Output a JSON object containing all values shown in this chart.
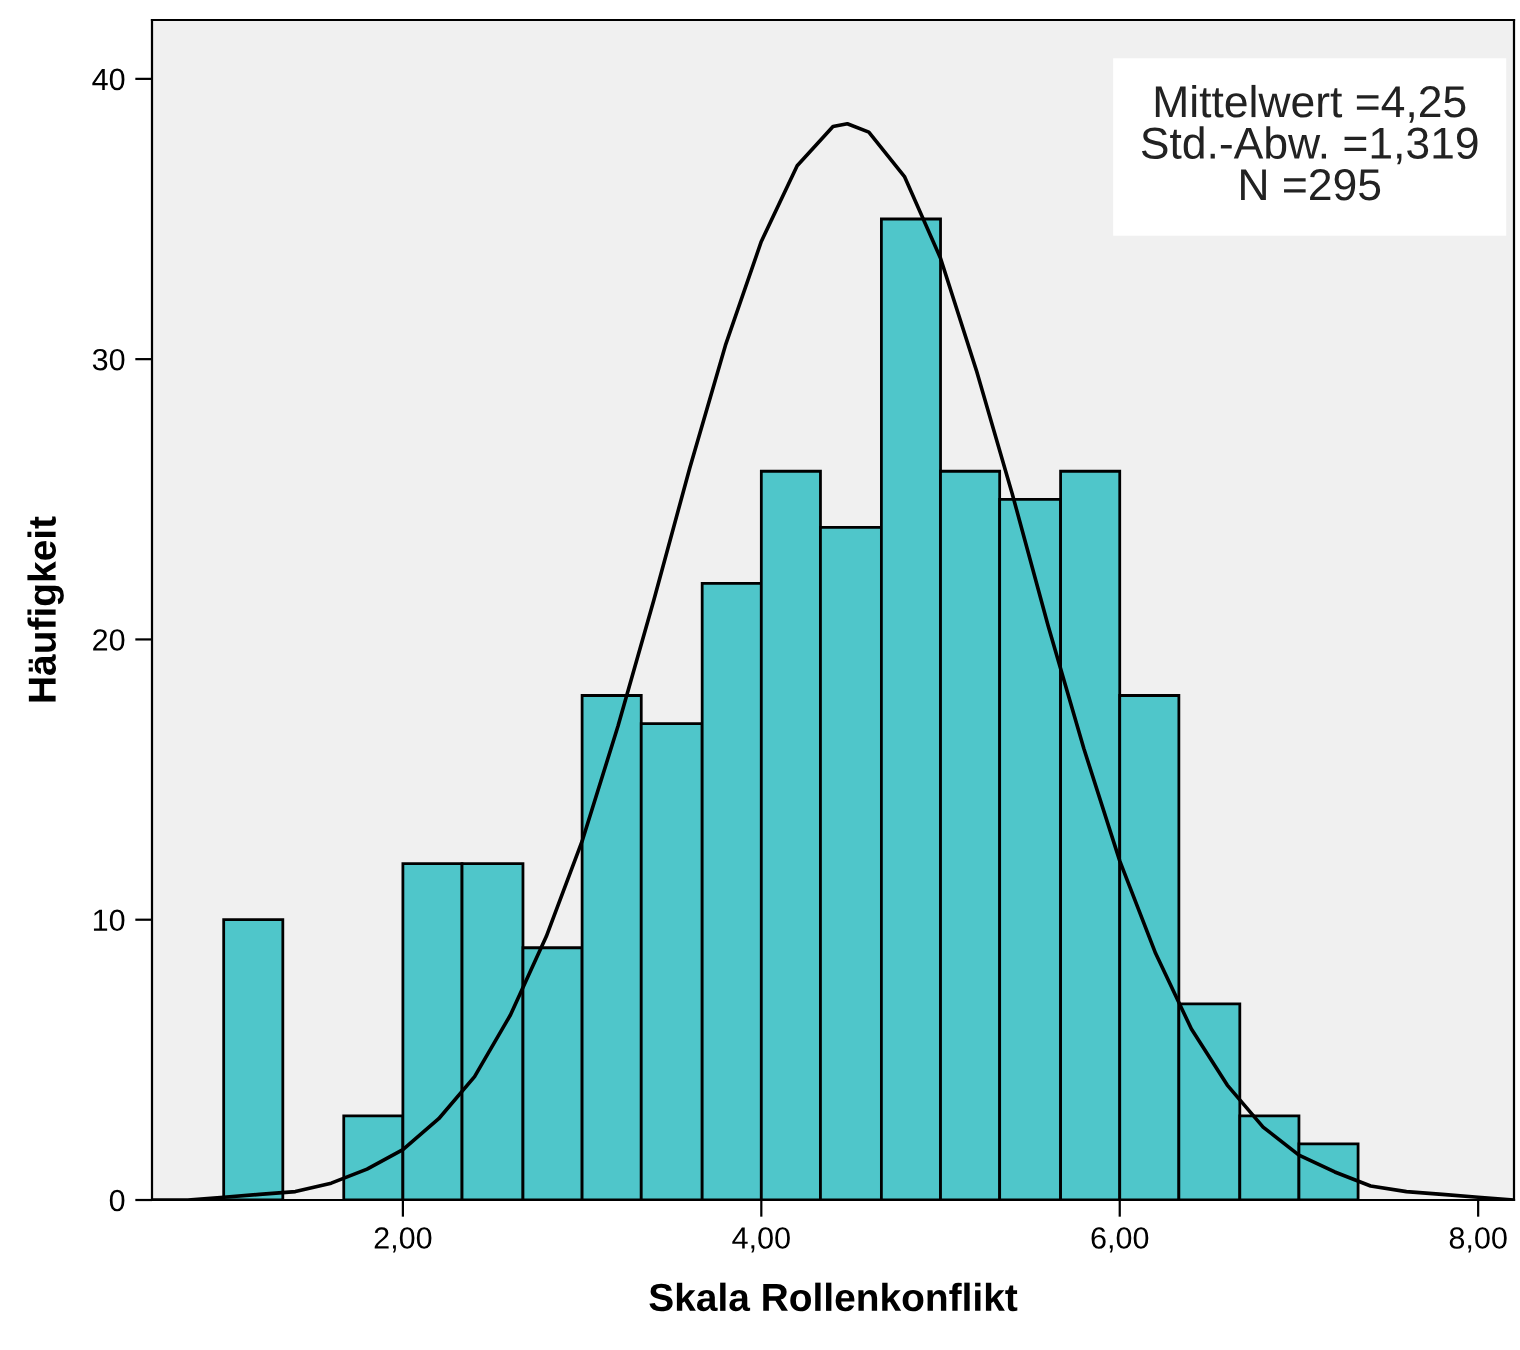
{
  "chart_data": {
    "type": "histogram",
    "xlabel": "Skala Rollenkonflikt",
    "ylabel": "Häufigkeit",
    "bins": [
      1.0,
      1.33,
      1.67,
      2.0,
      2.33,
      2.67,
      3.0,
      3.33,
      3.67,
      4.0,
      4.33,
      4.67,
      5.0,
      5.33,
      5.67,
      6.0,
      6.33,
      6.67,
      7.0,
      7.33
    ],
    "values": [
      10,
      0,
      3,
      12,
      12,
      9,
      18,
      17,
      22,
      26,
      24,
      35,
      26,
      25,
      26,
      18,
      7,
      3,
      2
    ],
    "color": "#4fc6ca",
    "series": [
      {
        "type": "line",
        "color": "#000000",
        "x": [
          0.6,
          0.8,
          1.0,
          1.2,
          1.4,
          1.6,
          1.8,
          2.0,
          2.2,
          2.4,
          2.6,
          2.8,
          3.0,
          3.2,
          3.4,
          3.6,
          3.8,
          4.0,
          4.2,
          4.4,
          4.48,
          4.6,
          4.8,
          5.0,
          5.2,
          5.4,
          5.6,
          5.8,
          6.0,
          6.2,
          6.4,
          6.6,
          6.8,
          7.0,
          7.2,
          7.4,
          7.6,
          7.8,
          8.0,
          8.2
        ],
        "values": [
          0.0,
          0.0,
          0.1,
          0.2,
          0.3,
          0.6,
          1.1,
          1.8,
          2.9,
          4.4,
          6.6,
          9.4,
          12.8,
          16.9,
          21.4,
          26.1,
          30.5,
          34.2,
          36.9,
          38.3,
          38.4,
          38.1,
          36.5,
          33.6,
          29.6,
          25.2,
          20.5,
          16.1,
          12.1,
          8.8,
          6.1,
          4.1,
          2.6,
          1.6,
          1.0,
          0.5,
          0.3,
          0.2,
          0.1,
          0.0
        ]
      }
    ],
    "annotations": [
      "Mittelwert =4,25",
      "Std.-Abw. =1,319",
      "N =295"
    ],
    "xlim": [
      0.6,
      8.2
    ],
    "ylim": [
      0,
      42.1
    ],
    "xticks": [
      {
        "value": 2,
        "label": "2,00"
      },
      {
        "value": 4,
        "label": "4,00"
      },
      {
        "value": 6,
        "label": "6,00"
      },
      {
        "value": 8,
        "label": "8,00"
      }
    ],
    "yticks": [
      0,
      10,
      20,
      30,
      40
    ],
    "grid": false,
    "legend": false
  }
}
